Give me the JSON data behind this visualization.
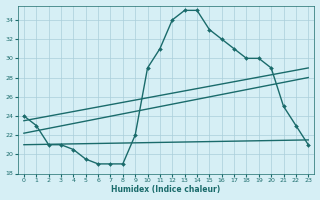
{
  "xlabel": "Humidex (Indice chaleur)",
  "xlim": [
    -0.5,
    23.5
  ],
  "ylim": [
    18,
    35.5
  ],
  "yticks": [
    18,
    20,
    22,
    24,
    26,
    28,
    30,
    32,
    34
  ],
  "xticks": [
    0,
    1,
    2,
    3,
    4,
    5,
    6,
    7,
    8,
    9,
    10,
    11,
    12,
    13,
    14,
    15,
    16,
    17,
    18,
    19,
    20,
    21,
    22,
    23
  ],
  "bg_color": "#d6eff5",
  "grid_color": "#aacfdb",
  "line_color": "#1a6b6b",
  "series": [
    {
      "x": [
        0,
        1,
        2,
        3,
        4,
        5,
        6,
        7,
        8,
        9,
        10,
        11,
        12,
        13,
        14,
        15,
        16,
        17,
        18,
        19,
        20,
        21,
        22,
        23
      ],
      "y": [
        24,
        23,
        21,
        21,
        20.5,
        19.5,
        19,
        19,
        19,
        22,
        29,
        31,
        34,
        35,
        35,
        33,
        32,
        31,
        30,
        30,
        29,
        25,
        23,
        21
      ],
      "marker": "D",
      "marker_size": 2.0,
      "linewidth": 1.0
    },
    {
      "x": [
        0,
        23
      ],
      "y": [
        23.5,
        29.0
      ],
      "marker": null,
      "marker_size": 0,
      "linewidth": 1.0
    },
    {
      "x": [
        0,
        23
      ],
      "y": [
        22.2,
        28.0
      ],
      "marker": null,
      "marker_size": 0,
      "linewidth": 1.0
    },
    {
      "x": [
        0,
        23
      ],
      "y": [
        21.0,
        21.5
      ],
      "marker": null,
      "marker_size": 0,
      "linewidth": 1.0
    }
  ]
}
